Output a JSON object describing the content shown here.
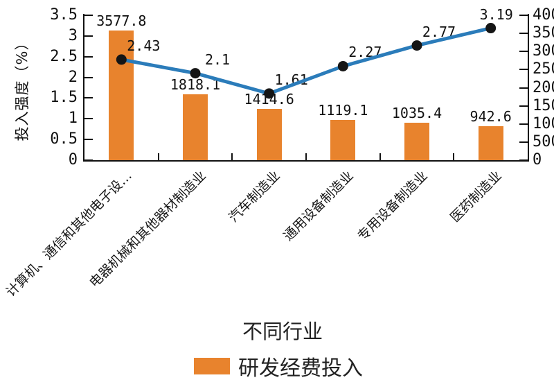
{
  "colors": {
    "bar": "#E8832D",
    "line": "#2B7CBA",
    "dot": "#151515",
    "axis": "#111111",
    "text": "#111111"
  },
  "chart_data": {
    "type": "combo",
    "title": "",
    "xlabel": "不同行业",
    "ylabel_left": "投入强度（%）",
    "left_ylim": [
      0,
      3.5
    ],
    "right_ylim": [
      0,
      4000
    ],
    "grid": false,
    "legend_position": "bottom",
    "categories": [
      "计算机、通信和其他电子设…",
      "电器机械和其他器材制造业",
      "汽车制造业",
      "通用设备制造业",
      "专用设备制造业",
      "医药制造业"
    ],
    "left_axis_tick_labels": [
      "3.5",
      "3",
      "2.5",
      "2",
      "1.5",
      "1",
      "0.5",
      "0"
    ],
    "left_axis_tick_values": [
      3.5,
      3,
      2.5,
      2,
      1.5,
      1,
      0.5,
      0
    ],
    "right_axis_tick_labels": [
      "4000",
      "3500",
      "3000",
      "2500",
      "2000",
      "1500",
      "1000",
      "500",
      "0"
    ],
    "right_axis_tick_values": [
      4000,
      3500,
      3000,
      2500,
      2000,
      1500,
      1000,
      500,
      0
    ],
    "series": [
      {
        "name": "研发经费投入",
        "type": "bar",
        "y_axis": "right",
        "values": [
          3577.8,
          1818.1,
          1414.6,
          1119.1,
          1035.4,
          942.6
        ],
        "data_labels": [
          "3577.8",
          "1818.1",
          "1414.6",
          "1119.1",
          "1035.4",
          "942.6"
        ]
      },
      {
        "name": "",
        "type": "line",
        "y_axis": "left",
        "values": [
          2.43,
          2.1,
          1.61,
          2.27,
          2.77,
          3.19
        ],
        "data_labels": [
          "2.43",
          "2.1",
          "1.61",
          "2.27",
          "2.77",
          "3.19"
        ]
      }
    ]
  },
  "legend": {
    "bar_label": "研发经费投入"
  }
}
